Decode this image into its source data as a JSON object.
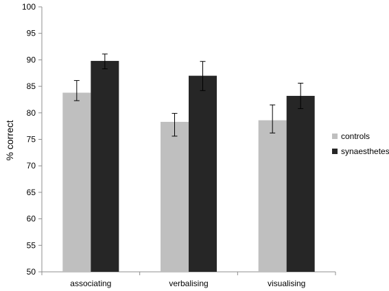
{
  "chart_data": {
    "type": "bar",
    "title": "",
    "xlabel": "",
    "ylabel": "% correct",
    "ylim": [
      50,
      100
    ],
    "yticks": [
      50,
      55,
      60,
      65,
      70,
      75,
      80,
      85,
      90,
      95,
      100
    ],
    "categories": [
      "associating",
      "verbalising",
      "visualising"
    ],
    "series": [
      {
        "name": "controls",
        "color": "#bfbfbf",
        "values": [
          83.8,
          78.3,
          78.6
        ],
        "error": [
          [
            82.3,
            86.1
          ],
          [
            75.6,
            79.9
          ],
          [
            76.2,
            81.5
          ]
        ]
      },
      {
        "name": "synaesthetes",
        "color": "#262626",
        "values": [
          89.8,
          87.0,
          83.2
        ],
        "error": [
          [
            88.3,
            91.1
          ],
          [
            84.2,
            89.7
          ],
          [
            80.8,
            85.6
          ]
        ]
      }
    ],
    "grid": false,
    "legend_position": "right"
  }
}
